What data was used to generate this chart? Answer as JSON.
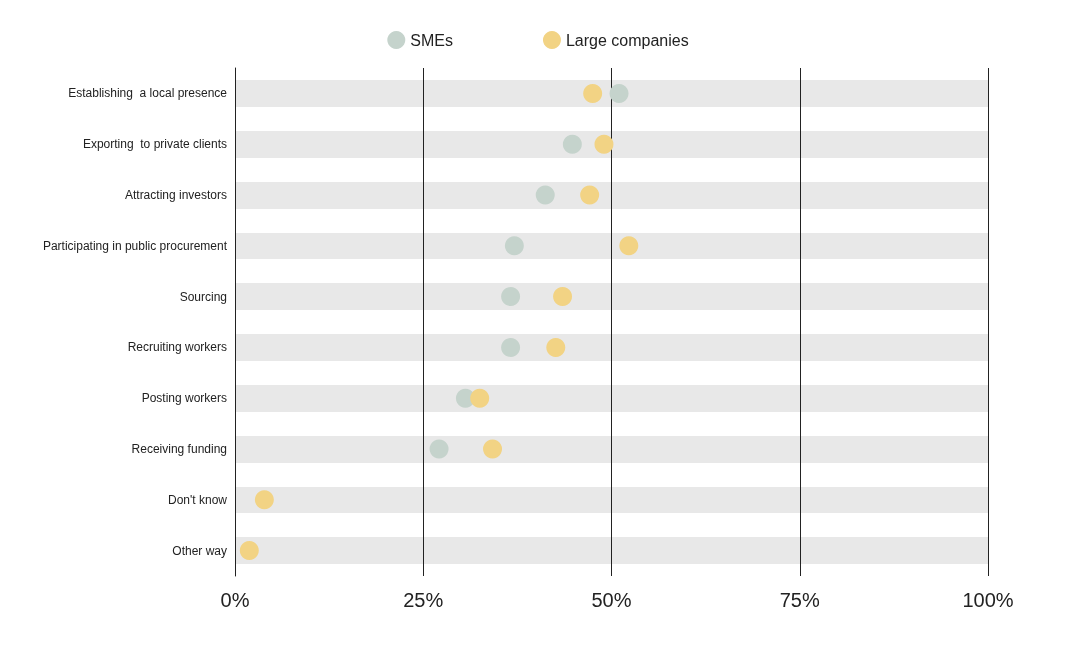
{
  "chart_data": {
    "type": "scatter",
    "categories": [
      "Establishing  a local presence",
      "Exporting  to private clients",
      "Attracting investors",
      "Participating in public procurement",
      "Sourcing",
      "Recruiting workers",
      "Posting workers",
      "Receiving funding",
      "Don't know",
      "Other way"
    ],
    "series": [
      {
        "name": "SMEs",
        "color": "#c5d3cc",
        "values": [
          51.0,
          44.8,
          41.2,
          37.1,
          36.6,
          36.6,
          30.6,
          27.1,
          null,
          null
        ]
      },
      {
        "name": "Large companies",
        "color": "#f2d384",
        "values": [
          47.5,
          49.0,
          47.1,
          52.3,
          43.5,
          42.6,
          32.5,
          34.2,
          3.9,
          1.9
        ]
      }
    ],
    "orientation": "horizontal",
    "xlim": [
      0,
      100
    ],
    "xticks": [
      {
        "value": 0,
        "label": "0%"
      },
      {
        "value": 25,
        "label": "25%"
      },
      {
        "value": 50,
        "label": "50%"
      },
      {
        "value": 75,
        "label": "75%"
      },
      {
        "value": 100,
        "label": "100%"
      }
    ],
    "grid": "x",
    "legend": "top",
    "marker": "circle"
  }
}
